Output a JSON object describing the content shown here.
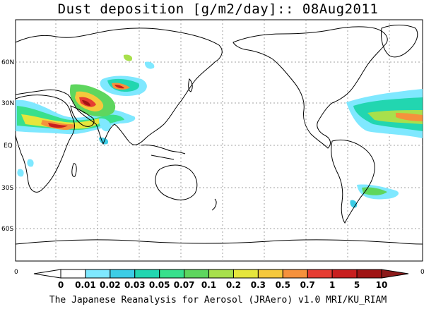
{
  "title": "Dust deposition [g/m2/day]:: 08Aug2011",
  "credit": "The Japanese Reanalysis for Aerosol (JRAero) v1.0 MRI/KU_RIAM",
  "lat_labels": [
    "60N",
    "30N",
    "EQ",
    "30S",
    "60S"
  ],
  "axis_end_labels": {
    "left": "0",
    "right": "0"
  },
  "colorbar": {
    "labels": [
      "0",
      "0.01",
      "0.02",
      "0.03",
      "0.05",
      "0.07",
      "0.1",
      "0.2",
      "0.3",
      "0.5",
      "0.7",
      "1",
      "5",
      "10"
    ],
    "colors": [
      "#ffffff",
      "#ffffff",
      "#7fe8ff",
      "#3ccde6",
      "#22d6b0",
      "#38e08c",
      "#5ed65e",
      "#a8e04c",
      "#e6e63c",
      "#f5c83c",
      "#f5913c",
      "#e63c32",
      "#c81e1e",
      "#a01414",
      "#8c1a1a"
    ]
  },
  "colors": {
    "land_outline": "#000000",
    "grid": "#a0a0a0",
    "background": "#ffffff"
  }
}
